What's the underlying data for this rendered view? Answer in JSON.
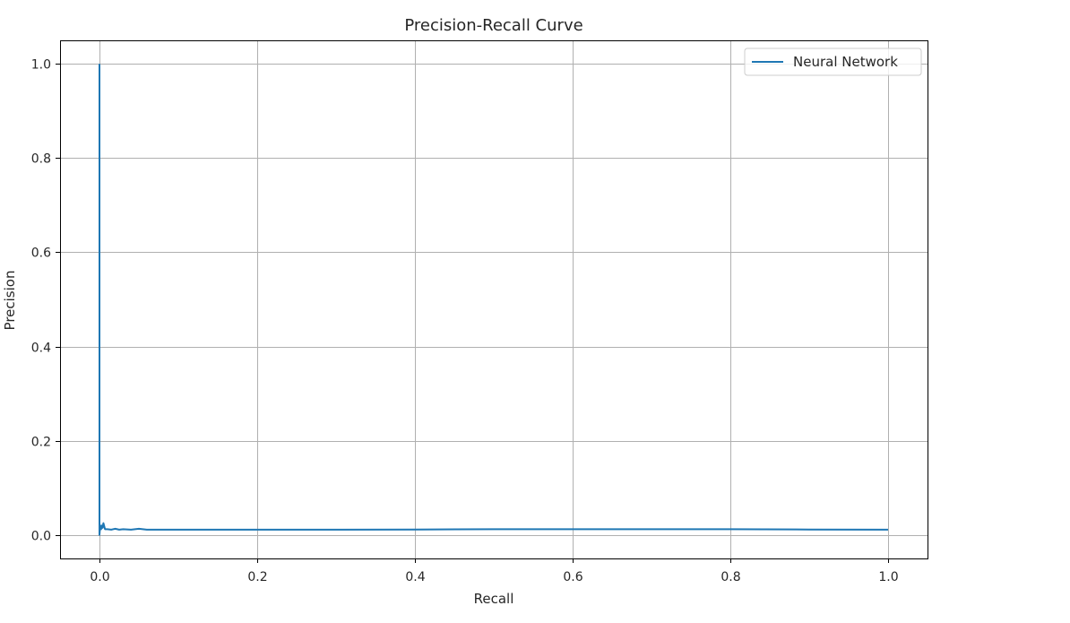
{
  "chart_data": {
    "type": "line",
    "title": "Precision-Recall Curve",
    "xlabel": "Recall",
    "ylabel": "Precision",
    "xlim": [
      -0.05,
      1.05
    ],
    "ylim": [
      -0.05,
      1.05
    ],
    "xticks": [
      0.0,
      0.2,
      0.4,
      0.6,
      0.8,
      1.0
    ],
    "xtick_labels": [
      "0.0",
      "0.2",
      "0.4",
      "0.6",
      "0.8",
      "1.0"
    ],
    "yticks": [
      0.0,
      0.2,
      0.4,
      0.6,
      0.8,
      1.0
    ],
    "ytick_labels": [
      "0.0",
      "0.2",
      "0.4",
      "0.6",
      "0.8",
      "1.0"
    ],
    "grid": true,
    "legend_position": "upper right",
    "series": [
      {
        "name": "Neural Network",
        "color": "#1f77b4",
        "x": [
          0.0,
          0.0,
          0.0005,
          0.001,
          0.002,
          0.003,
          0.004,
          0.005,
          0.007,
          0.01,
          0.015,
          0.02,
          0.025,
          0.03,
          0.04,
          0.05,
          0.06,
          0.08,
          0.1,
          0.15,
          0.2,
          0.3,
          0.4,
          0.5,
          0.6,
          0.7,
          0.8,
          0.9,
          1.0
        ],
        "y": [
          1.0,
          0.0,
          0.01,
          0.02,
          0.012,
          0.02,
          0.015,
          0.025,
          0.012,
          0.012,
          0.011,
          0.013,
          0.011,
          0.012,
          0.011,
          0.013,
          0.011,
          0.011,
          0.011,
          0.011,
          0.011,
          0.011,
          0.0115,
          0.012,
          0.012,
          0.012,
          0.012,
          0.0115,
          0.011
        ]
      }
    ]
  }
}
